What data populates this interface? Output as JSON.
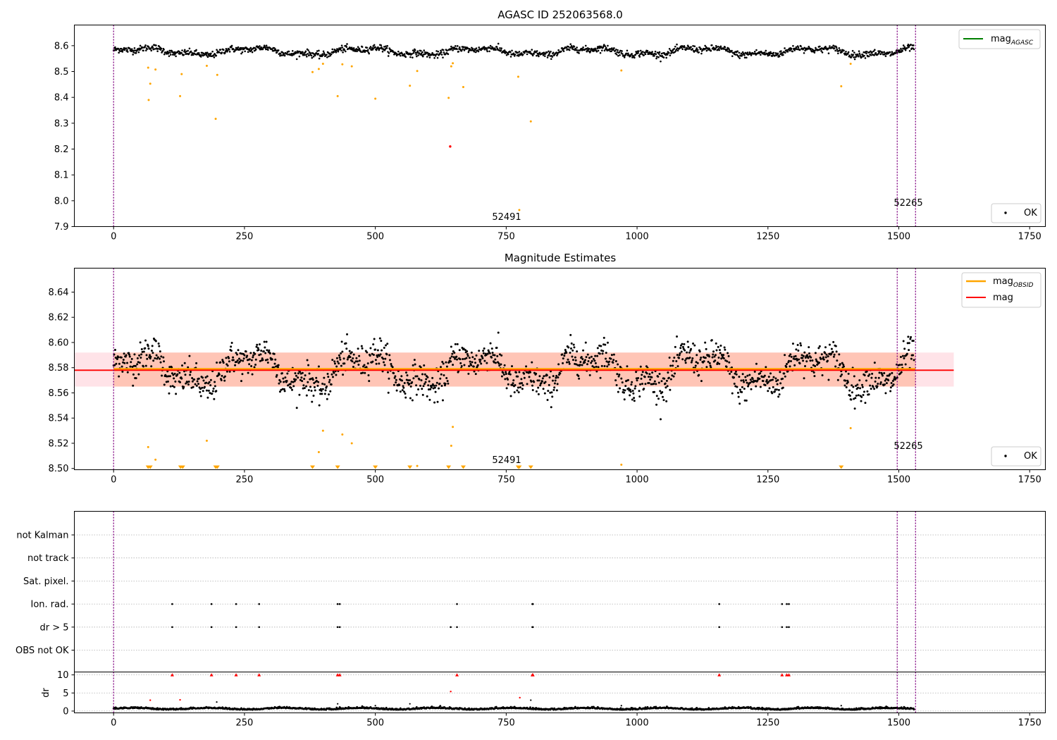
{
  "chart_data": [
    {
      "type": "scatter",
      "panel": "top",
      "title": "AGASC ID 252063568.0",
      "xlim": [
        -75,
        1780
      ],
      "ylim": [
        7.9,
        8.68
      ],
      "xticks": [
        0,
        250,
        500,
        750,
        1000,
        1250,
        1500,
        1750
      ],
      "xtick_labels": [
        "0",
        "250",
        "500",
        "750",
        "1000",
        "1250",
        "1500",
        "1750"
      ],
      "yticks": [
        7.9,
        8.0,
        8.1,
        8.2,
        8.3,
        8.4,
        8.5,
        8.6
      ],
      "ytick_labels": [
        "7.9",
        "8.0",
        "8.1",
        "8.2",
        "8.3",
        "8.4",
        "8.5",
        "8.6"
      ],
      "vlines": [
        0,
        1497,
        1532
      ],
      "annotations": [
        {
          "text": "52491",
          "x": 748,
          "y": 7.92
        },
        {
          "text": "52265",
          "x": 1515,
          "y": 7.98
        }
      ],
      "legend_upper": [
        {
          "label": "mag",
          "sub": "AGASC",
          "color": "#008000",
          "kind": "line"
        }
      ],
      "legend_lower": [
        {
          "label": "OK",
          "color": "#000000",
          "kind": "dot"
        }
      ],
      "colors": {
        "ok": "#000000",
        "flagged": "#ffa500",
        "bad": "#ff0000",
        "vline": "#800080"
      },
      "orange_points": [
        [
          66,
          8.515
        ],
        [
          67,
          8.39
        ],
        [
          70,
          8.453
        ],
        [
          80,
          8.508
        ],
        [
          127,
          8.405
        ],
        [
          130,
          8.49
        ],
        [
          178,
          8.522
        ],
        [
          195,
          8.317
        ],
        [
          198,
          8.487
        ],
        [
          380,
          8.498
        ],
        [
          392,
          8.51
        ],
        [
          400,
          8.53
        ],
        [
          428,
          8.405
        ],
        [
          437,
          8.528
        ],
        [
          455,
          8.52
        ],
        [
          500,
          8.395
        ],
        [
          566,
          8.445
        ],
        [
          580,
          8.502
        ],
        [
          640,
          8.398
        ],
        [
          645,
          8.52
        ],
        [
          648,
          8.532
        ],
        [
          668,
          8.44
        ],
        [
          773,
          8.48
        ],
        [
          775,
          7.964
        ],
        [
          797,
          8.307
        ],
        [
          970,
          8.504
        ],
        [
          1390,
          8.443
        ],
        [
          1408,
          8.53
        ]
      ],
      "red_points": [
        [
          643,
          8.21
        ]
      ]
    },
    {
      "type": "scatter",
      "panel": "middle",
      "title": "Magnitude Estimates",
      "xlim": [
        -75,
        1780
      ],
      "ylim": [
        8.499,
        8.659
      ],
      "xticks": [
        0,
        250,
        500,
        750,
        1000,
        1250,
        1500,
        1750
      ],
      "xtick_labels": [
        "0",
        "250",
        "500",
        "750",
        "1000",
        "1250",
        "1500",
        "1750"
      ],
      "yticks": [
        8.5,
        8.52,
        8.54,
        8.56,
        8.58,
        8.6,
        8.62,
        8.64
      ],
      "ytick_labels": [
        "8.50",
        "8.52",
        "8.54",
        "8.56",
        "8.58",
        "8.60",
        "8.62",
        "8.64"
      ],
      "vlines": [
        0,
        1497,
        1532
      ],
      "mag_line": 8.578,
      "mag_obsid_line": 8.579,
      "band_pink": [
        8.565,
        8.592
      ],
      "band_orange": [
        8.565,
        8.592
      ],
      "band_x": [
        -75,
        1605
      ],
      "annotations": [
        {
          "text": "52491",
          "x": 748,
          "y": 8.506
        },
        {
          "text": "52265",
          "x": 1515,
          "y": 8.517
        }
      ],
      "legend_upper": [
        {
          "label": "mag",
          "sub": "OBSID",
          "color": "#ffa500",
          "kind": "line"
        },
        {
          "label": "mag",
          "sub": "",
          "color": "#ff0000",
          "kind": "line"
        }
      ],
      "legend_lower": [
        {
          "label": "OK",
          "color": "#000000",
          "kind": "dot"
        }
      ],
      "colors": {
        "ok": "#000000",
        "flagged": "#ffa500",
        "band_pink": "#ffc0cb",
        "band_orange": "#ffa07a",
        "mag": "#ff0000",
        "mag_obsid": "#ffa500"
      },
      "orange_points": [
        [
          66,
          8.517
        ],
        [
          80,
          8.507
        ],
        [
          178,
          8.522
        ],
        [
          392,
          8.513
        ],
        [
          400,
          8.53
        ],
        [
          437,
          8.527
        ],
        [
          455,
          8.52
        ],
        [
          580,
          8.502
        ],
        [
          645,
          8.518
        ],
        [
          648,
          8.533
        ],
        [
          970,
          8.503
        ],
        [
          1408,
          8.532
        ]
      ],
      "orange_markers_at_bottom": [
        66,
        70,
        128,
        132,
        195,
        198,
        380,
        428,
        500,
        566,
        640,
        668,
        773,
        775,
        797,
        1390
      ]
    },
    {
      "type": "scatter",
      "panel": "flags",
      "categories": [
        "not Kalman",
        "not track",
        "Sat. pixel.",
        "Ion. rad.",
        "dr > 5",
        "OBS not OK"
      ],
      "ion_rad_x": [
        112,
        187,
        234,
        278,
        428,
        432,
        656,
        800,
        801,
        1157,
        1277,
        1286,
        1290
      ],
      "dr5_x": [
        112,
        187,
        234,
        278,
        428,
        432,
        644,
        656,
        800,
        801,
        1157,
        1277,
        1286,
        1290
      ],
      "vlines": [
        0,
        1497,
        1532
      ]
    },
    {
      "type": "scatter",
      "panel": "dr",
      "ylabel": "dr",
      "xlim": [
        -75,
        1780
      ],
      "ylim": [
        -0.5,
        10.8
      ],
      "yticks": [
        0,
        5,
        10
      ],
      "ytick_labels": [
        "0",
        "5",
        "10"
      ],
      "xticks": [
        0,
        250,
        500,
        750,
        1000,
        1250,
        1500,
        1750
      ],
      "xtick_labels": [
        "0",
        "250",
        "500",
        "750",
        "1000",
        "1250",
        "1500",
        "1750"
      ],
      "clipped_red_x": [
        112,
        187,
        234,
        278,
        428,
        432,
        656,
        800,
        801,
        1157,
        1277,
        1286,
        1290
      ],
      "red_points": [
        [
          70,
          3.0
        ],
        [
          127,
          3.1
        ],
        [
          644,
          5.4
        ],
        [
          776,
          3.7
        ]
      ],
      "black_outliers": [
        [
          197,
          2.5
        ],
        [
          428,
          2.0
        ],
        [
          500,
          1.5
        ],
        [
          566,
          2.0
        ],
        [
          797,
          3.0
        ],
        [
          970,
          1.5
        ],
        [
          1390,
          1.5
        ]
      ],
      "vlines": [
        0,
        1497,
        1532
      ]
    }
  ]
}
